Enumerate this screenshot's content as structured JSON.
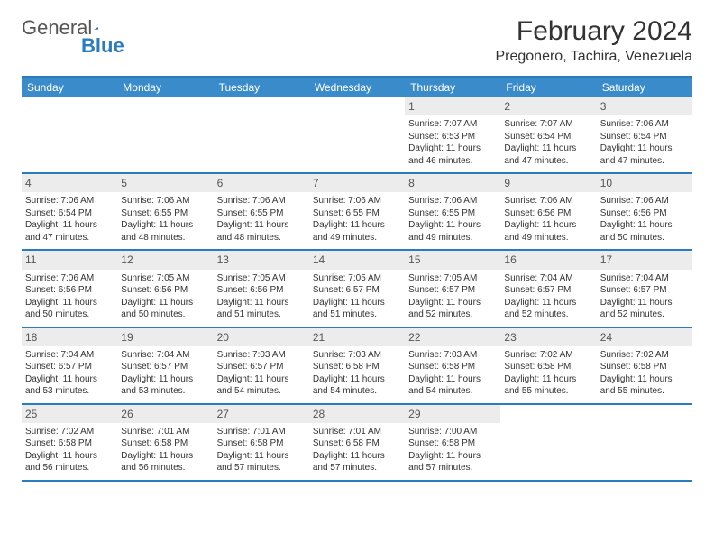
{
  "logo": {
    "text1": "General",
    "text2": "Blue"
  },
  "title": "February 2024",
  "location": "Pregonero, Tachira, Venezuela",
  "colors": {
    "headerBar": "#3a8bc9",
    "accentLine": "#2b7bbf",
    "dayNumBg": "#ececec",
    "textDark": "#333333",
    "textMuted": "#555555"
  },
  "dayHeaders": [
    "Sunday",
    "Monday",
    "Tuesday",
    "Wednesday",
    "Thursday",
    "Friday",
    "Saturday"
  ],
  "weeks": [
    [
      null,
      null,
      null,
      null,
      {
        "n": "1",
        "sr": "7:07 AM",
        "ss": "6:53 PM",
        "dl1": "11 hours",
        "dl2": "46 minutes"
      },
      {
        "n": "2",
        "sr": "7:07 AM",
        "ss": "6:54 PM",
        "dl1": "11 hours",
        "dl2": "47 minutes"
      },
      {
        "n": "3",
        "sr": "7:06 AM",
        "ss": "6:54 PM",
        "dl1": "11 hours",
        "dl2": "47 minutes"
      }
    ],
    [
      {
        "n": "4",
        "sr": "7:06 AM",
        "ss": "6:54 PM",
        "dl1": "11 hours",
        "dl2": "47 minutes"
      },
      {
        "n": "5",
        "sr": "7:06 AM",
        "ss": "6:55 PM",
        "dl1": "11 hours",
        "dl2": "48 minutes"
      },
      {
        "n": "6",
        "sr": "7:06 AM",
        "ss": "6:55 PM",
        "dl1": "11 hours",
        "dl2": "48 minutes"
      },
      {
        "n": "7",
        "sr": "7:06 AM",
        "ss": "6:55 PM",
        "dl1": "11 hours",
        "dl2": "49 minutes"
      },
      {
        "n": "8",
        "sr": "7:06 AM",
        "ss": "6:55 PM",
        "dl1": "11 hours",
        "dl2": "49 minutes"
      },
      {
        "n": "9",
        "sr": "7:06 AM",
        "ss": "6:56 PM",
        "dl1": "11 hours",
        "dl2": "49 minutes"
      },
      {
        "n": "10",
        "sr": "7:06 AM",
        "ss": "6:56 PM",
        "dl1": "11 hours",
        "dl2": "50 minutes"
      }
    ],
    [
      {
        "n": "11",
        "sr": "7:06 AM",
        "ss": "6:56 PM",
        "dl1": "11 hours",
        "dl2": "50 minutes"
      },
      {
        "n": "12",
        "sr": "7:05 AM",
        "ss": "6:56 PM",
        "dl1": "11 hours",
        "dl2": "50 minutes"
      },
      {
        "n": "13",
        "sr": "7:05 AM",
        "ss": "6:56 PM",
        "dl1": "11 hours",
        "dl2": "51 minutes"
      },
      {
        "n": "14",
        "sr": "7:05 AM",
        "ss": "6:57 PM",
        "dl1": "11 hours",
        "dl2": "51 minutes"
      },
      {
        "n": "15",
        "sr": "7:05 AM",
        "ss": "6:57 PM",
        "dl1": "11 hours",
        "dl2": "52 minutes"
      },
      {
        "n": "16",
        "sr": "7:04 AM",
        "ss": "6:57 PM",
        "dl1": "11 hours",
        "dl2": "52 minutes"
      },
      {
        "n": "17",
        "sr": "7:04 AM",
        "ss": "6:57 PM",
        "dl1": "11 hours",
        "dl2": "52 minutes"
      }
    ],
    [
      {
        "n": "18",
        "sr": "7:04 AM",
        "ss": "6:57 PM",
        "dl1": "11 hours",
        "dl2": "53 minutes"
      },
      {
        "n": "19",
        "sr": "7:04 AM",
        "ss": "6:57 PM",
        "dl1": "11 hours",
        "dl2": "53 minutes"
      },
      {
        "n": "20",
        "sr": "7:03 AM",
        "ss": "6:57 PM",
        "dl1": "11 hours",
        "dl2": "54 minutes"
      },
      {
        "n": "21",
        "sr": "7:03 AM",
        "ss": "6:58 PM",
        "dl1": "11 hours",
        "dl2": "54 minutes"
      },
      {
        "n": "22",
        "sr": "7:03 AM",
        "ss": "6:58 PM",
        "dl1": "11 hours",
        "dl2": "54 minutes"
      },
      {
        "n": "23",
        "sr": "7:02 AM",
        "ss": "6:58 PM",
        "dl1": "11 hours",
        "dl2": "55 minutes"
      },
      {
        "n": "24",
        "sr": "7:02 AM",
        "ss": "6:58 PM",
        "dl1": "11 hours",
        "dl2": "55 minutes"
      }
    ],
    [
      {
        "n": "25",
        "sr": "7:02 AM",
        "ss": "6:58 PM",
        "dl1": "11 hours",
        "dl2": "56 minutes"
      },
      {
        "n": "26",
        "sr": "7:01 AM",
        "ss": "6:58 PM",
        "dl1": "11 hours",
        "dl2": "56 minutes"
      },
      {
        "n": "27",
        "sr": "7:01 AM",
        "ss": "6:58 PM",
        "dl1": "11 hours",
        "dl2": "57 minutes"
      },
      {
        "n": "28",
        "sr": "7:01 AM",
        "ss": "6:58 PM",
        "dl1": "11 hours",
        "dl2": "57 minutes"
      },
      {
        "n": "29",
        "sr": "7:00 AM",
        "ss": "6:58 PM",
        "dl1": "11 hours",
        "dl2": "57 minutes"
      },
      null,
      null
    ]
  ],
  "labels": {
    "sunrise": "Sunrise:",
    "sunset": "Sunset:",
    "daylight": "Daylight:",
    "and": "and"
  }
}
